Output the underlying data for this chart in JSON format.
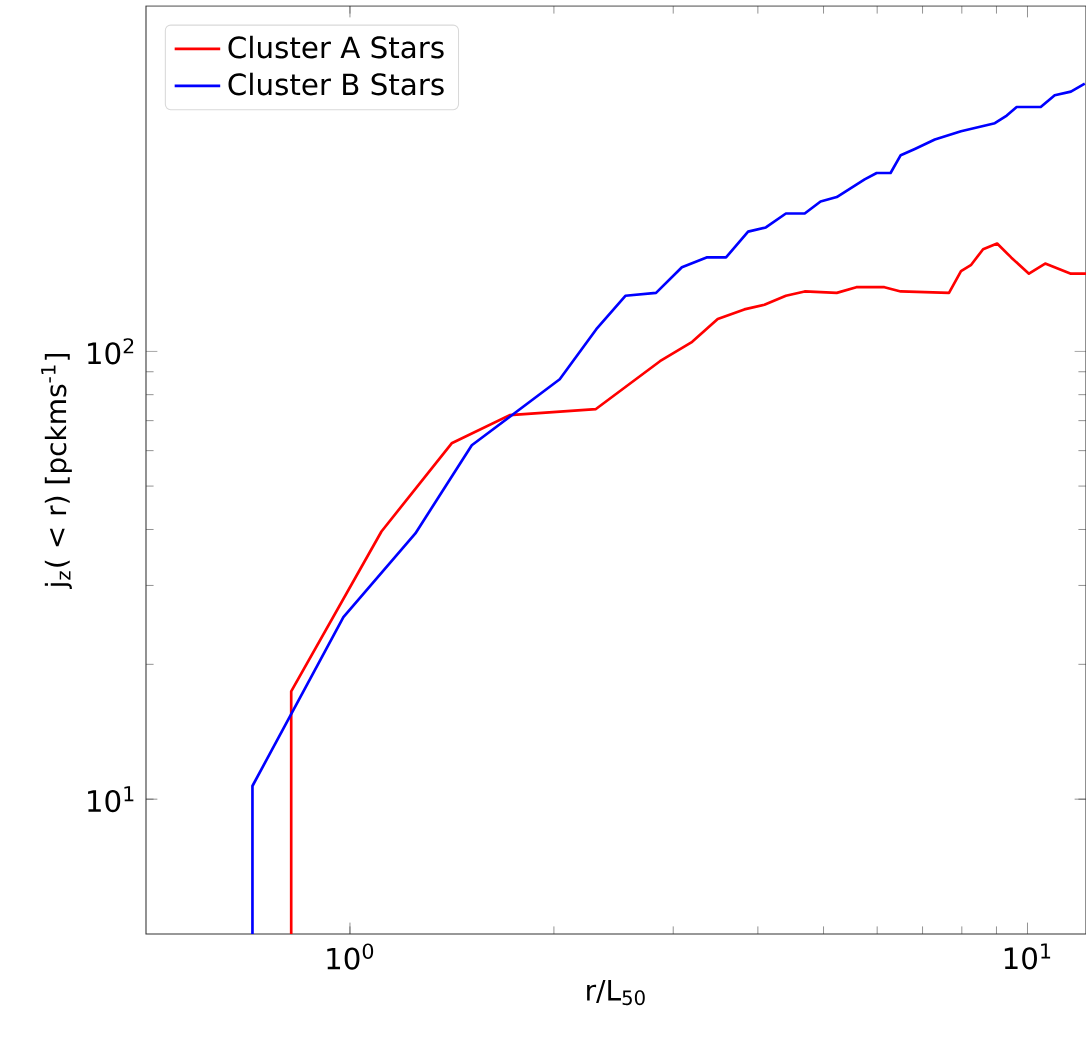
{
  "chart_data": {
    "type": "line",
    "xlabel": "r/L$_{50}$",
    "ylabel": "j$_{z}$( < r) [pckms$^{-1}$]",
    "log": "xy",
    "legend": "top left",
    "grid": false,
    "marker": "none",
    "line_style": "solid",
    "xlim": [
      0.5,
      12.2
    ],
    "ylim": [
      5,
      590
    ],
    "xticks": [
      {
        "value": 1,
        "label": "10$^{0}$"
      },
      {
        "value": 10,
        "label": "10$^{1}$"
      }
    ],
    "yticks": [
      {
        "value": 10,
        "label": "10$^{1}$"
      },
      {
        "value": 100,
        "label": "10$^{2}$"
      }
    ],
    "series": [
      {
        "name": "Cluster A Stars",
        "color": "#ff0000",
        "x": [
          0.819,
          0.819,
          1.113,
          1.413,
          1.721,
          2.307,
          2.868,
          3.2,
          3.49,
          3.82,
          4.09,
          4.4,
          4.69,
          5.23,
          5.59,
          6.15,
          6.5,
          7.66,
          7.98,
          8.26,
          8.6,
          9.02,
          9.46,
          10.05,
          10.62,
          11.2,
          11.59,
          12.2
        ],
        "values": [
          5,
          17.4,
          39.6,
          62.3,
          72,
          74.3,
          95,
          105,
          118,
          124,
          127,
          133,
          136,
          135,
          139,
          139,
          136,
          135,
          151,
          156,
          169,
          174,
          162,
          149,
          157,
          152,
          149,
          149
        ]
      },
      {
        "name": "Cluster B Stars",
        "color": "#0000ff",
        "x": [
          0.718,
          0.718,
          0.978,
          1.249,
          1.513,
          2.04,
          2.31,
          2.55,
          2.83,
          3.09,
          3.36,
          3.59,
          3.87,
          4.11,
          4.4,
          4.69,
          4.95,
          5.23,
          5.75,
          5.99,
          6.28,
          6.5,
          6.82,
          7.3,
          7.98,
          8.95,
          9.32,
          9.64,
          10.46,
          10.97,
          11.59,
          12.15
        ],
        "values": [
          5,
          10.7,
          25.5,
          39.2,
          61.7,
          86.6,
          112,
          133,
          135,
          154,
          162,
          162,
          185,
          189,
          203,
          203,
          216,
          221,
          242,
          250,
          250,
          274,
          283,
          297,
          310,
          323,
          336,
          351,
          351,
          373,
          380,
          396
        ]
      }
    ]
  }
}
